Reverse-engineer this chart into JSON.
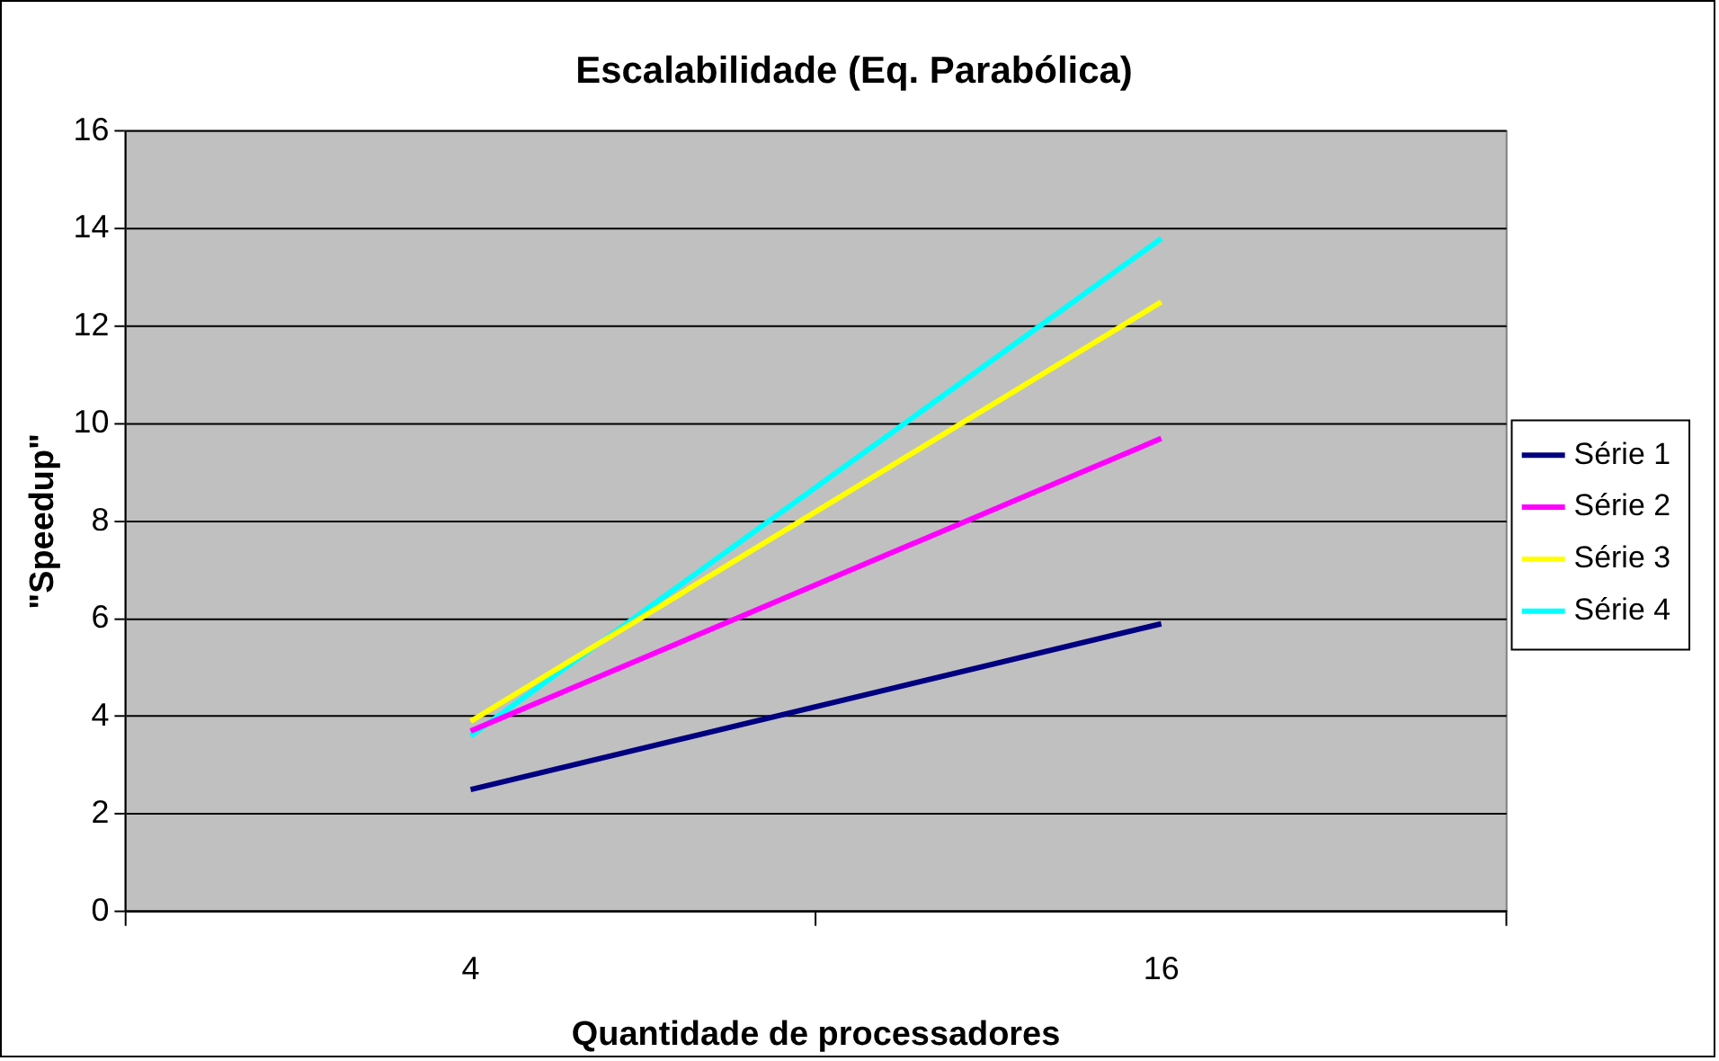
{
  "chart_data": {
    "type": "line",
    "title": "Escalabilidade (Eq. Parabólica)",
    "xlabel": "Quantidade de processadores",
    "ylabel": "\"Speedup\"",
    "categories": [
      "4",
      "16"
    ],
    "series": [
      {
        "name": "Série 1",
        "color": "#000080",
        "values": [
          2.5,
          5.9
        ]
      },
      {
        "name": "Série 2",
        "color": "#ff00ff",
        "values": [
          3.7,
          9.7
        ]
      },
      {
        "name": "Série 3",
        "color": "#ffff00",
        "values": [
          3.9,
          12.5
        ]
      },
      {
        "name": "Série 4",
        "color": "#00ffff",
        "values": [
          3.6,
          13.8
        ]
      }
    ],
    "ylim": [
      0,
      16
    ],
    "yticks": [
      0,
      2,
      4,
      6,
      8,
      10,
      12,
      14,
      16
    ],
    "grid": "y",
    "legend": "right",
    "marker": "none",
    "line_style": "solid"
  }
}
